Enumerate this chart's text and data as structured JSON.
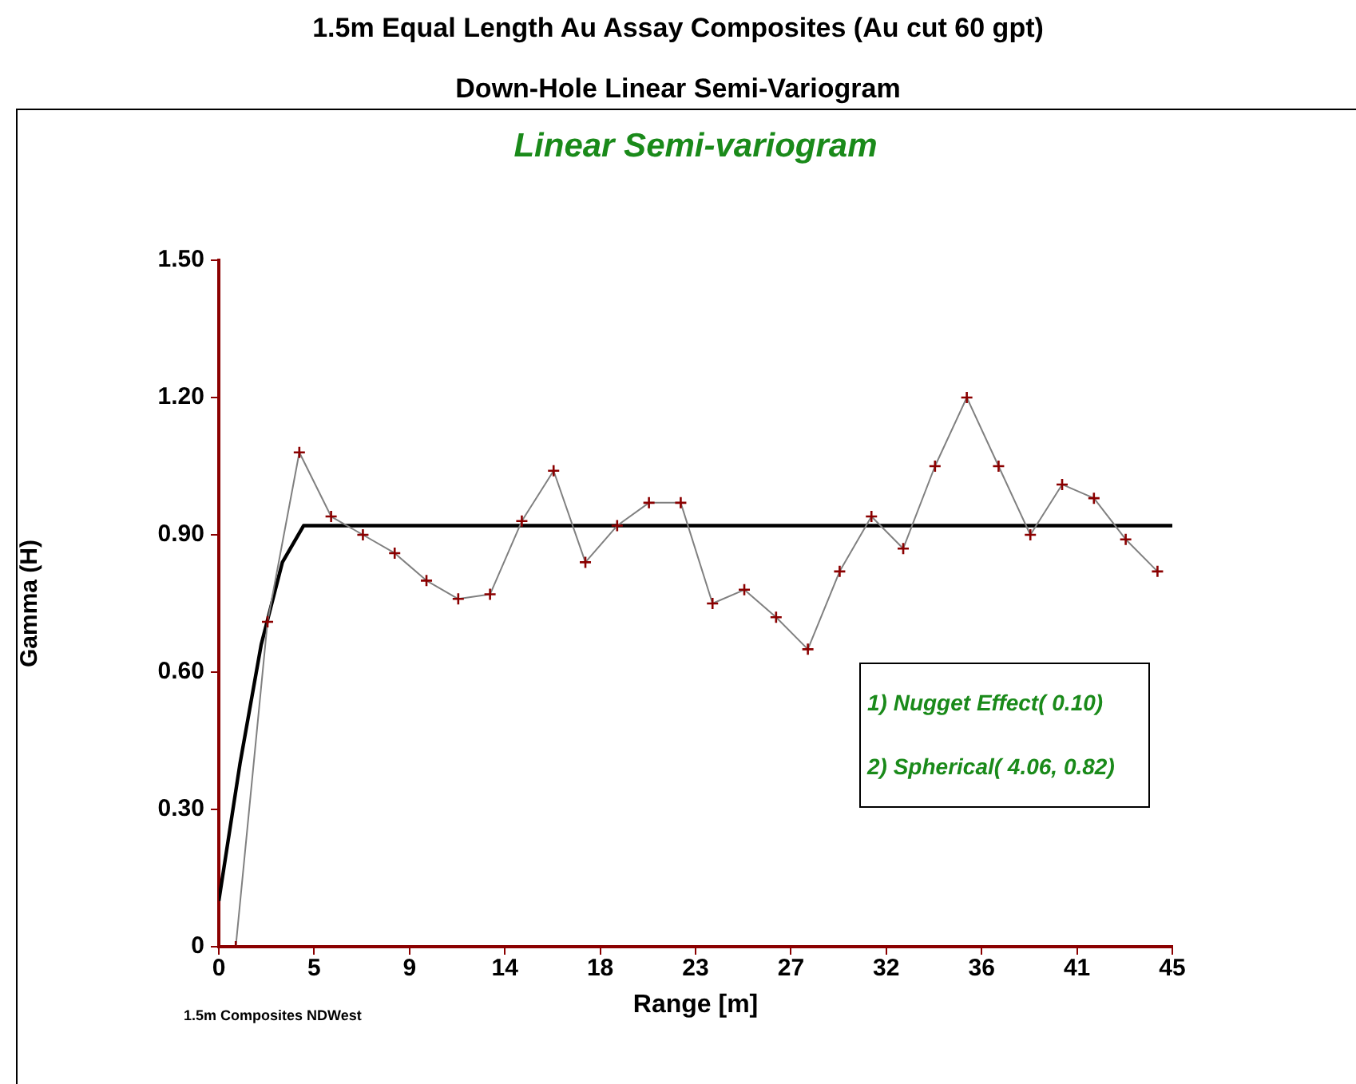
{
  "chart_data": {
    "type": "line",
    "title": "1.5m Equal Length Au Assay Composites (Au cut 60 gpt)",
    "subtitle": "Down-Hole Linear Semi-Variogram",
    "xlabel": "Range [m]",
    "ylabel": "Gamma (H)",
    "annotations": [
      "Linear Semi-variogram",
      "1) Nugget Effect( 0.10)",
      "2) Spherical( 4.06, 0.82)",
      "1.5m Composites NDWest"
    ],
    "series": [
      {
        "color": "#8b0000",
        "marker": "cross",
        "x": [
          0.8,
          2.3,
          3.8,
          5.3,
          6.8,
          8.3,
          9.8,
          11.3,
          12.8,
          14.3,
          15.8,
          17.3,
          18.8,
          20.3,
          21.8,
          23.3,
          24.8,
          26.3,
          27.8,
          29.3,
          30.8,
          32.3,
          33.8,
          35.3,
          36.8,
          38.3,
          39.8,
          41.3,
          42.8,
          44.3
        ],
        "values": [
          0.0,
          0.71,
          1.08,
          0.94,
          0.9,
          0.86,
          0.8,
          0.76,
          0.77,
          0.93,
          1.04,
          0.84,
          0.92,
          0.97,
          0.97,
          0.75,
          0.78,
          0.72,
          0.65,
          0.82,
          0.94,
          0.87,
          1.05,
          1.2,
          1.05,
          0.9,
          1.01,
          0.98,
          0.89,
          0.82
        ]
      },
      {
        "color": "#000000",
        "marker": "none",
        "x": [
          0,
          1,
          2,
          3,
          4,
          4.06,
          45
        ],
        "values": [
          0.1,
          0.4,
          0.66,
          0.84,
          0.92,
          0.92,
          0.92
        ]
      }
    ],
    "xlim": [
      0,
      45
    ],
    "xticks": [
      0,
      {
        "value": 4.5,
        "label": "5"
      },
      9,
      {
        "value": 13.5,
        "label": "14"
      },
      18,
      {
        "value": 22.5,
        "label": "23"
      },
      27,
      {
        "value": 31.5,
        "label": "32"
      },
      36,
      {
        "value": 40.5,
        "label": "41"
      },
      45
    ],
    "ylim": [
      0,
      1.5
    ],
    "yticks": [
      0,
      {
        "value": 0.3,
        "label": "0.30"
      },
      {
        "value": 0.6,
        "label": "0.60"
      },
      {
        "value": 0.9,
        "label": "0.90"
      },
      {
        "value": 1.2,
        "label": "1.20"
      },
      {
        "value": 1.5,
        "label": "1.50"
      }
    ],
    "grid": false,
    "legend": false
  }
}
